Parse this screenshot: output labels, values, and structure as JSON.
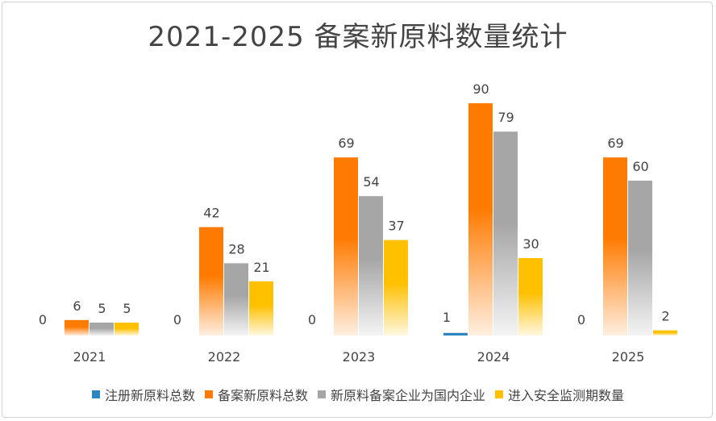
{
  "chart_data": {
    "type": "bar",
    "title": "2021-2025 备案新原料数量统计",
    "categories": [
      "2021",
      "2022",
      "2023",
      "2024",
      "2025"
    ],
    "series": [
      {
        "name": "注册新原料总数",
        "color": "#2E86C1",
        "values": [
          0,
          0,
          0,
          1,
          0
        ]
      },
      {
        "name": "备案新原料总数",
        "color": "#FF7A00",
        "values": [
          6,
          42,
          69,
          90,
          69
        ]
      },
      {
        "name": "新原料备案企业为国内企业",
        "color": "#A6A6A6",
        "values": [
          5,
          28,
          54,
          79,
          60
        ]
      },
      {
        "name": "进入安全监测期数量",
        "color": "#FFC000",
        "values": [
          5,
          21,
          37,
          30,
          2
        ]
      }
    ],
    "xlabel": "",
    "ylabel": "",
    "ylim": [
      0,
      100
    ],
    "grid": false,
    "legend": "bottom"
  }
}
